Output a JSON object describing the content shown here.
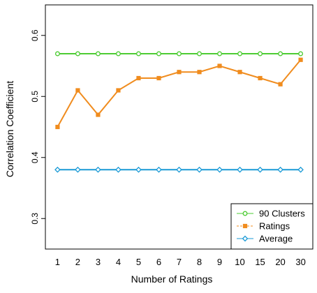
{
  "chart_data": {
    "type": "line",
    "title": "",
    "xlabel": "Number of Ratings",
    "ylabel": "Correlation Coefficient",
    "categories": [
      "1",
      "2",
      "3",
      "4",
      "5",
      "6",
      "7",
      "8",
      "9",
      "10",
      "15",
      "20",
      "30"
    ],
    "ylim": [
      0.25,
      0.65
    ],
    "yticks": [
      0.3,
      0.4,
      0.5,
      0.6
    ],
    "ytick_labels": [
      "0.3",
      "0.4",
      "0.5",
      "0.6"
    ],
    "grid": false,
    "legend_position": "bottom-right",
    "series": [
      {
        "name": "90 Clusters",
        "color": "#4dcc33",
        "marker": "circle",
        "line_style": "solid",
        "values": [
          0.57,
          0.57,
          0.57,
          0.57,
          0.57,
          0.57,
          0.57,
          0.57,
          0.57,
          0.57,
          0.57,
          0.57,
          0.57
        ]
      },
      {
        "name": "Ratings",
        "color": "#f08c1e",
        "marker": "square",
        "line_style": "dashed",
        "values": [
          0.45,
          0.51,
          0.47,
          0.51,
          0.53,
          0.53,
          0.54,
          0.54,
          0.55,
          0.54,
          0.53,
          0.52,
          0.56
        ]
      },
      {
        "name": "Average",
        "color": "#1a9ad6",
        "marker": "diamond",
        "line_style": "solid",
        "values": [
          0.38,
          0.38,
          0.38,
          0.38,
          0.38,
          0.38,
          0.38,
          0.38,
          0.38,
          0.38,
          0.38,
          0.38,
          0.38
        ]
      }
    ]
  }
}
